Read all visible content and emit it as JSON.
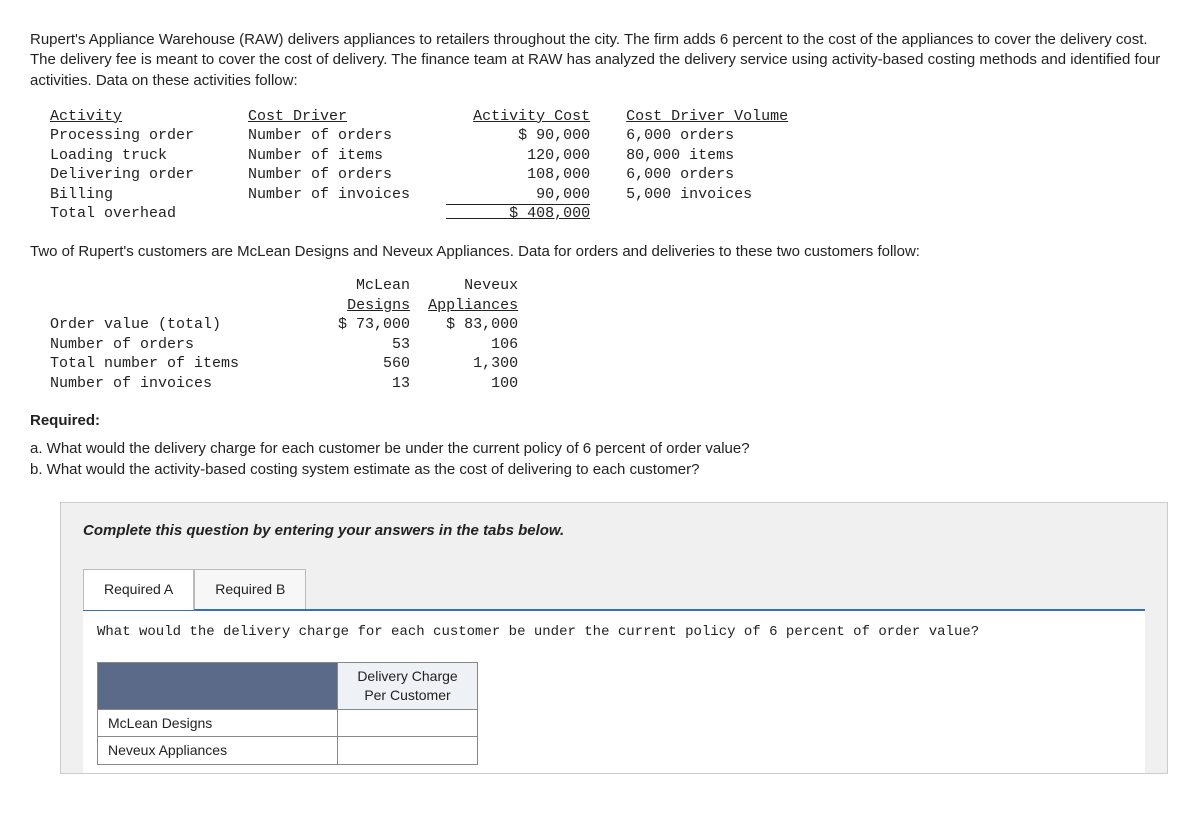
{
  "intro": "Rupert's Appliance Warehouse (RAW) delivers appliances to retailers throughout the city. The firm adds 6 percent to the cost of the appliances to cover the delivery cost. The delivery fee is meant to cover the cost of delivery. The finance team at RAW has analyzed the delivery service using activity-based costing methods and identified four activities. Data on these activities follow:",
  "activity_table": {
    "headers": {
      "activity": "Activity",
      "driver": "Cost Driver",
      "cost": "Activity Cost",
      "volume": "Cost Driver Volume"
    },
    "rows": [
      {
        "activity": "Processing order",
        "driver": "Number of orders",
        "cost": "$ 90,000",
        "volume": "6,000 orders"
      },
      {
        "activity": "Loading truck",
        "driver": "Number of items",
        "cost": "120,000",
        "volume": "80,000 items"
      },
      {
        "activity": "Delivering order",
        "driver": "Number of orders",
        "cost": "108,000",
        "volume": "6,000 orders"
      },
      {
        "activity": "Billing",
        "driver": "Number of invoices",
        "cost": "90,000",
        "volume": "5,000 invoices"
      }
    ],
    "total_label": "Total overhead",
    "total_value": "$ 408,000"
  },
  "mid_text": "Two of Rupert's customers are McLean Designs and Neveux Appliances. Data for orders and deliveries to these two customers follow:",
  "customer_table": {
    "col1": "McLean\nDesigns",
    "col2": "Neveux\nAppliances",
    "rows": [
      {
        "label": "Order value (total)",
        "c1": "$ 73,000",
        "c2": "$ 83,000"
      },
      {
        "label": "Number of orders",
        "c1": "53",
        "c2": "106"
      },
      {
        "label": "Total number of items",
        "c1": "560",
        "c2": "1,300"
      },
      {
        "label": "Number of invoices",
        "c1": "13",
        "c2": "100"
      }
    ]
  },
  "required_title": "Required:",
  "required_a": "a. What would the delivery charge for each customer be under the current policy of 6 percent of order value?",
  "required_b": "b. What would the activity-based costing system estimate as the cost of delivering to each customer?",
  "answer_prompt": "Complete this question by entering your answers in the tabs below.",
  "tabs": {
    "a": "Required A",
    "b": "Required B"
  },
  "tab_a_question": "What would the delivery charge for each customer be under the current policy of 6 percent of order value?",
  "answer_table": {
    "col_header": "Delivery Charge\nPer Customer",
    "row1": "McLean Designs",
    "row2": "Neveux Appliances"
  }
}
